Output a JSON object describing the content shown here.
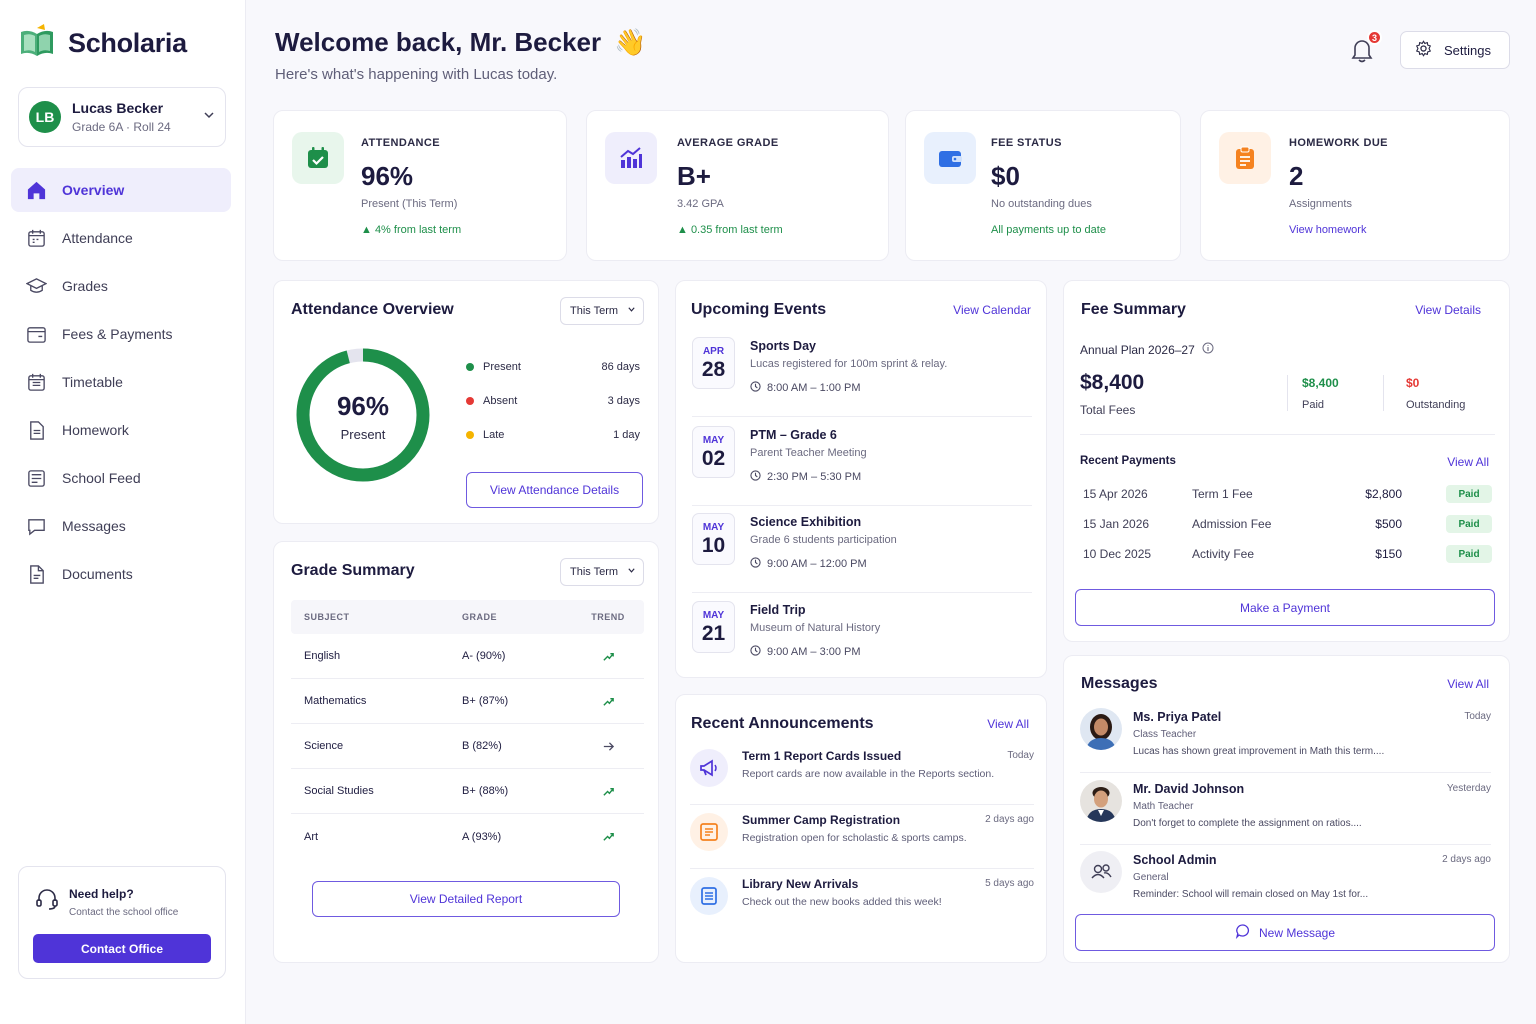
{
  "brand": {
    "name": "Scholaria"
  },
  "student": {
    "initials": "LB",
    "name": "Lucas Becker",
    "meta": "Grade 6A  ·  Roll 24"
  },
  "nav": [
    {
      "label": "Overview",
      "icon": "home-icon",
      "active": true
    },
    {
      "label": "Attendance",
      "icon": "calendar-icon"
    },
    {
      "label": "Grades",
      "icon": "graduation-cap-icon"
    },
    {
      "label": "Fees & Payments",
      "icon": "wallet-icon"
    },
    {
      "label": "Timetable",
      "icon": "timetable-icon"
    },
    {
      "label": "Homework",
      "icon": "document-icon"
    },
    {
      "label": "School Feed",
      "icon": "feed-icon"
    },
    {
      "label": "Messages",
      "icon": "chat-icon"
    },
    {
      "label": "Documents",
      "icon": "file-icon"
    }
  ],
  "help": {
    "title": "Need help?",
    "subtitle": "Contact the school office",
    "button": "Contact Office"
  },
  "header": {
    "title": "Welcome back, Mr. Becker",
    "emoji": "👋",
    "subtitle": "Here's what's happening with Lucas today.",
    "notifications": "3",
    "settings": "Settings"
  },
  "stats": {
    "attendance": {
      "label": "ATTENDANCE",
      "value": "96%",
      "sub": "Present (This Term)",
      "foot": "▲ 4%  from last term"
    },
    "grade": {
      "label": "AVERAGE GRADE",
      "value": "B+",
      "sub": "3.42 GPA",
      "foot": "▲ 0.35 from last term"
    },
    "fee": {
      "label": "FEE STATUS",
      "value": "$0",
      "sub": "No outstanding dues",
      "foot": "All payments up to date"
    },
    "homework": {
      "label": "HOMEWORK DUE",
      "value": "2",
      "sub": "Assignments",
      "foot": "View homework"
    }
  },
  "attendance_overview": {
    "title": "Attendance Overview",
    "filter": "This Term",
    "center_value": "96%",
    "center_label": "Present",
    "present_fraction": 0.96,
    "legend": [
      {
        "label": "Present",
        "value": "86 days",
        "color": "#1e8f4a"
      },
      {
        "label": "Absent",
        "value": "3 days",
        "color": "#e53935"
      },
      {
        "label": "Late",
        "value": "1 day",
        "color": "#f5b400"
      }
    ],
    "button": "View Attendance Details"
  },
  "grade_summary": {
    "title": "Grade Summary",
    "filter": "This Term",
    "columns": [
      "SUBJECT",
      "GRADE",
      "TREND"
    ],
    "rows": [
      {
        "subject": "English",
        "grade": "A-  (90%)",
        "trend": "up"
      },
      {
        "subject": "Mathematics",
        "grade": "B+  (87%)",
        "trend": "up"
      },
      {
        "subject": "Science",
        "grade": "B  (82%)",
        "trend": "flat"
      },
      {
        "subject": "Social Studies",
        "grade": "B+  (88%)",
        "trend": "up"
      },
      {
        "subject": "Art",
        "grade": "A  (93%)",
        "trend": "up"
      }
    ],
    "button": "View Detailed Report"
  },
  "events": {
    "title": "Upcoming Events",
    "link": "View Calendar",
    "items": [
      {
        "month": "APR",
        "day": "28",
        "title": "Sports Day",
        "desc": "Lucas registered for 100m sprint & relay.",
        "time": "8:00 AM – 1:00 PM"
      },
      {
        "month": "MAY",
        "day": "02",
        "title": "PTM – Grade 6",
        "desc": "Parent Teacher Meeting",
        "time": "2:30 PM – 5:30 PM"
      },
      {
        "month": "MAY",
        "day": "10",
        "title": "Science Exhibition",
        "desc": "Grade 6 students participation",
        "time": "9:00 AM – 12:00 PM"
      },
      {
        "month": "MAY",
        "day": "21",
        "title": "Field Trip",
        "desc": "Museum of Natural History",
        "time": "9:00 AM – 3:00 PM"
      }
    ]
  },
  "announcements": {
    "title": "Recent Announcements",
    "link": "View All",
    "items": [
      {
        "title": "Term 1 Report Cards Issued",
        "desc": "Report cards are now available in the Reports section.",
        "time": "Today",
        "icon": "megaphone-icon"
      },
      {
        "title": "Summer Camp Registration",
        "desc": "Registration open for scholastic & sports camps.",
        "time": "2 days ago",
        "icon": "form-icon"
      },
      {
        "title": "Library New Arrivals",
        "desc": "Check out the new books added this week!",
        "time": "5 days ago",
        "icon": "book-icon"
      }
    ]
  },
  "fee_summary": {
    "title": "Fee Summary",
    "link": "View Details",
    "plan": "Annual Plan 2026–27",
    "total": "$8,400",
    "total_label": "Total Fees",
    "paid": "$8,400",
    "paid_label": "Paid",
    "outstanding": "$0",
    "outstanding_label": "Outstanding",
    "recent_title": "Recent Payments",
    "recent_link": "View All",
    "payments": [
      {
        "date": "15 Apr 2026",
        "name": "Term 1 Fee",
        "amount": "$2,800",
        "status": "Paid"
      },
      {
        "date": "15 Jan 2026",
        "name": "Admission Fee",
        "amount": "$500",
        "status": "Paid"
      },
      {
        "date": "10 Dec 2025",
        "name": "Activity Fee",
        "amount": "$150",
        "status": "Paid"
      }
    ],
    "button": "Make a Payment"
  },
  "messages": {
    "title": "Messages",
    "link": "View All",
    "items": [
      {
        "name": "Ms. Priya Patel",
        "role": "Class Teacher",
        "text": "Lucas has shown great improvement in Math this term....",
        "time": "Today"
      },
      {
        "name": "Mr. David Johnson",
        "role": "Math Teacher",
        "text": "Don't forget to complete the assignment on ratios....",
        "time": "Yesterday"
      },
      {
        "name": "School Admin",
        "role": "General",
        "text": "Reminder: School will remain closed on May 1st for...",
        "time": "2 days ago"
      }
    ],
    "button": "New Message"
  }
}
